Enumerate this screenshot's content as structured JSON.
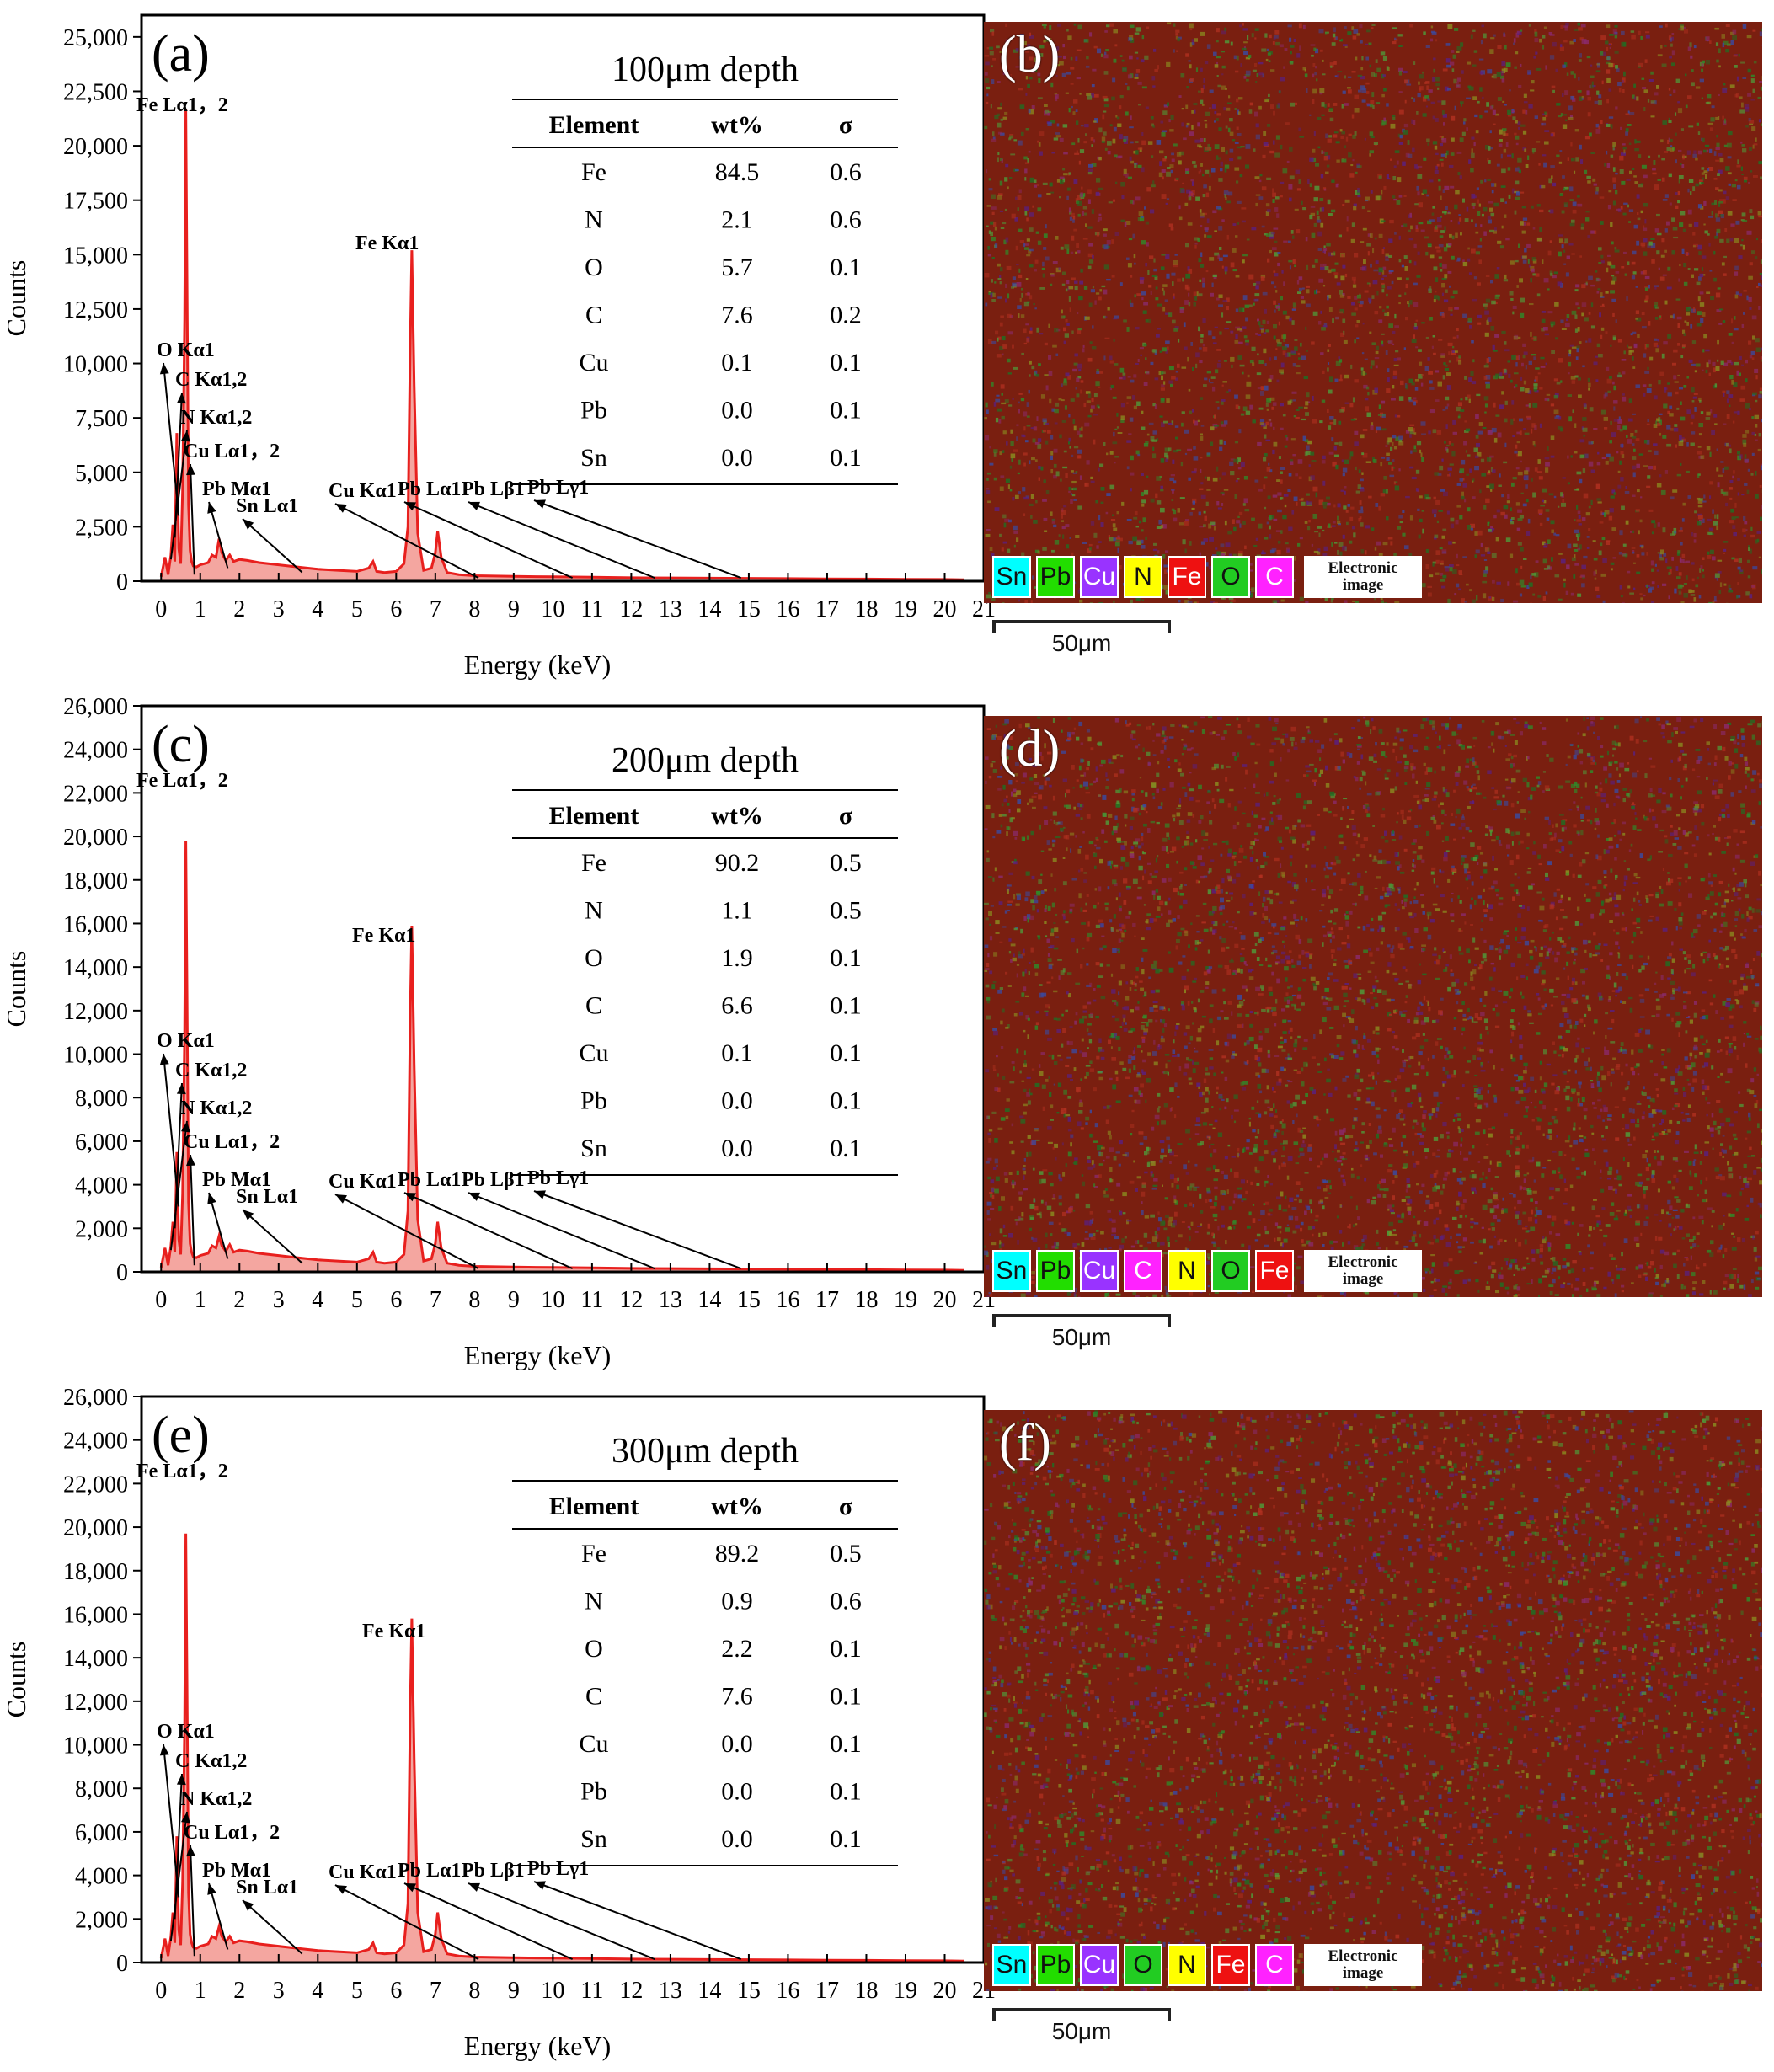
{
  "chart_data": [
    {
      "type": "area",
      "panel": "(a)",
      "depth_title": "100μm depth",
      "xlabel": "Energy (keV)",
      "ylabel": "Counts",
      "xlim": [
        -0.5,
        21
      ],
      "ylim": [
        0,
        26000
      ],
      "x_ticks": [
        0,
        1,
        2,
        3,
        4,
        5,
        6,
        7,
        8,
        9,
        10,
        11,
        12,
        13,
        14,
        15,
        16,
        17,
        18,
        19,
        20,
        21
      ],
      "y_ticks": [
        0,
        2500,
        5000,
        7500,
        10000,
        12500,
        15000,
        17500,
        20000,
        22500,
        25000
      ],
      "y_tick_labels": [
        "0",
        "2,500",
        "5,000",
        "7,500",
        "10,000",
        "12,500",
        "15,000",
        "17,500",
        "20,000",
        "22,500",
        "25,000"
      ],
      "series_color": "#e8201e",
      "fill_color": "#f4a6a0",
      "spectrum": {
        "x": [
          0,
          0.1,
          0.18,
          0.25,
          0.3,
          0.35,
          0.4,
          0.45,
          0.5,
          0.55,
          0.6,
          0.63,
          0.66,
          0.7,
          0.74,
          0.78,
          0.82,
          0.9,
          1.0,
          1.1,
          1.2,
          1.3,
          1.4,
          1.48,
          1.55,
          1.65,
          1.75,
          1.85,
          2.0,
          2.2,
          2.5,
          3.0,
          3.5,
          4.0,
          4.5,
          5.0,
          5.3,
          5.41,
          5.5,
          5.7,
          6.0,
          6.2,
          6.3,
          6.36,
          6.4,
          6.46,
          6.55,
          6.7,
          6.9,
          7.0,
          7.06,
          7.15,
          7.3,
          7.6,
          8.0,
          9.0,
          10.0,
          11.0,
          12.0,
          13.0,
          14.0,
          15.0,
          16.0,
          17.0,
          18.0,
          19.0,
          20.0,
          20.5
        ],
        "y": [
          200,
          1100,
          300,
          1200,
          2600,
          900,
          6800,
          1500,
          800,
          4200,
          12000,
          21700,
          14000,
          3500,
          1400,
          900,
          700,
          650,
          750,
          800,
          850,
          1200,
          1100,
          1950,
          1300,
          950,
          1200,
          900,
          1000,
          950,
          850,
          750,
          650,
          550,
          500,
          450,
          600,
          900,
          450,
          400,
          450,
          800,
          2500,
          11000,
          15200,
          9000,
          2200,
          500,
          600,
          1300,
          2300,
          1100,
          400,
          300,
          250,
          220,
          200,
          180,
          160,
          150,
          140,
          130,
          120,
          110,
          100,
          90,
          80,
          70
        ]
      },
      "annotations": [
        "Fe Lα1，2",
        "Fe Kα1",
        "O Kα1",
        "C Kα1,2",
        "N Kα1,2",
        "Cu Lα1，2",
        "Pb Mα1",
        "Sn Lα1",
        "Cu Kα1",
        "Pb Lα1",
        "Pb Lβ1",
        "Pb Lγ1"
      ],
      "table": {
        "headers": [
          "Element",
          "wt%",
          "σ"
        ],
        "rows": [
          [
            "Fe",
            "84.5",
            "0.6"
          ],
          [
            "N",
            "2.1",
            "0.6"
          ],
          [
            "O",
            "5.7",
            "0.1"
          ],
          [
            "C",
            "7.6",
            "0.2"
          ],
          [
            "Cu",
            "0.1",
            "0.1"
          ],
          [
            "Pb",
            "0.0",
            "0.1"
          ],
          [
            "Sn",
            "0.0",
            "0.1"
          ]
        ]
      }
    },
    {
      "type": "area",
      "panel": "(c)",
      "depth_title": "200μm depth",
      "xlabel": "Energy (keV)",
      "ylabel": "Counts",
      "xlim": [
        -0.5,
        21
      ],
      "ylim": [
        0,
        26000
      ],
      "x_ticks": [
        0,
        1,
        2,
        3,
        4,
        5,
        6,
        7,
        8,
        9,
        10,
        11,
        12,
        13,
        14,
        15,
        16,
        17,
        18,
        19,
        20,
        21
      ],
      "y_ticks": [
        0,
        2000,
        4000,
        6000,
        8000,
        10000,
        12000,
        14000,
        16000,
        18000,
        20000,
        22000,
        24000,
        26000
      ],
      "y_tick_labels": [
        "0",
        "2,000",
        "4,000",
        "6,000",
        "8,000",
        "10,000",
        "12,000",
        "14,000",
        "16,000",
        "18,000",
        "20,000",
        "22,000",
        "24,000",
        "26,000"
      ],
      "series_color": "#e8201e",
      "fill_color": "#f4a6a0",
      "spectrum": {
        "x": [
          0,
          0.1,
          0.18,
          0.25,
          0.3,
          0.35,
          0.4,
          0.45,
          0.5,
          0.55,
          0.6,
          0.63,
          0.66,
          0.7,
          0.74,
          0.78,
          0.82,
          0.9,
          1.0,
          1.1,
          1.2,
          1.3,
          1.4,
          1.48,
          1.55,
          1.65,
          1.75,
          1.85,
          2.0,
          2.2,
          2.5,
          3.0,
          3.5,
          4.0,
          4.5,
          5.0,
          5.3,
          5.41,
          5.5,
          5.7,
          6.0,
          6.2,
          6.3,
          6.36,
          6.4,
          6.46,
          6.55,
          6.7,
          6.9,
          7.0,
          7.06,
          7.15,
          7.3,
          7.6,
          8.0,
          9.0,
          10.0,
          11.0,
          12.0,
          13.0,
          14.0,
          15.0,
          16.0,
          17.0,
          18.0,
          19.0,
          20.0,
          20.5
        ],
        "y": [
          200,
          1100,
          300,
          1200,
          2300,
          900,
          5500,
          1500,
          800,
          3600,
          11000,
          19800,
          13000,
          3200,
          1300,
          900,
          700,
          650,
          750,
          800,
          850,
          1200,
          1100,
          1650,
          1200,
          950,
          1250,
          900,
          1000,
          950,
          850,
          750,
          650,
          550,
          500,
          450,
          600,
          900,
          450,
          400,
          450,
          800,
          2800,
          12000,
          15900,
          9500,
          2400,
          500,
          600,
          1300,
          2300,
          1100,
          400,
          300,
          250,
          220,
          200,
          180,
          160,
          150,
          140,
          130,
          120,
          110,
          100,
          90,
          80,
          70
        ]
      },
      "annotations": [
        "Fe Lα1，2",
        "Fe Kα1",
        "O Kα1",
        "C Kα1,2",
        "N Kα1,2",
        "Cu Lα1，2",
        "Pb Mα1",
        "Sn Lα1",
        "Cu Kα1",
        "Pb Lα1",
        "Pb Lβ1",
        "Pb Lγ1"
      ],
      "table": {
        "headers": [
          "Element",
          "wt%",
          "σ"
        ],
        "rows": [
          [
            "Fe",
            "90.2",
            "0.5"
          ],
          [
            "N",
            "1.1",
            "0.5"
          ],
          [
            "O",
            "1.9",
            "0.1"
          ],
          [
            "C",
            "6.6",
            "0.1"
          ],
          [
            "Cu",
            "0.1",
            "0.1"
          ],
          [
            "Pb",
            "0.0",
            "0.1"
          ],
          [
            "Sn",
            "0.0",
            "0.1"
          ]
        ]
      }
    },
    {
      "type": "area",
      "panel": "(e)",
      "depth_title": "300μm depth",
      "xlabel": "Energy (keV)",
      "ylabel": "Counts",
      "xlim": [
        -0.5,
        21
      ],
      "ylim": [
        0,
        26000
      ],
      "x_ticks": [
        0,
        1,
        2,
        3,
        4,
        5,
        6,
        7,
        8,
        9,
        10,
        11,
        12,
        13,
        14,
        15,
        16,
        17,
        18,
        19,
        20,
        21
      ],
      "y_ticks": [
        0,
        2000,
        4000,
        6000,
        8000,
        10000,
        12000,
        14000,
        16000,
        18000,
        20000,
        22000,
        24000,
        26000
      ],
      "y_tick_labels": [
        "0",
        "2,000",
        "4,000",
        "6,000",
        "8,000",
        "10,000",
        "12,000",
        "14,000",
        "16,000",
        "18,000",
        "20,000",
        "22,000",
        "24,000",
        "26,000"
      ],
      "series_color": "#e8201e",
      "fill_color": "#f4a6a0",
      "spectrum": {
        "x": [
          0,
          0.1,
          0.18,
          0.25,
          0.3,
          0.35,
          0.4,
          0.45,
          0.5,
          0.55,
          0.6,
          0.63,
          0.66,
          0.7,
          0.74,
          0.78,
          0.82,
          0.9,
          1.0,
          1.1,
          1.2,
          1.3,
          1.4,
          1.48,
          1.55,
          1.65,
          1.75,
          1.85,
          2.0,
          2.2,
          2.5,
          3.0,
          3.5,
          4.0,
          4.5,
          5.0,
          5.3,
          5.41,
          5.5,
          5.7,
          6.0,
          6.2,
          6.3,
          6.36,
          6.4,
          6.46,
          6.55,
          6.7,
          6.9,
          7.0,
          7.06,
          7.15,
          7.3,
          7.6,
          8.0,
          9.0,
          10.0,
          11.0,
          12.0,
          13.0,
          14.0,
          15.0,
          16.0,
          17.0,
          18.0,
          19.0,
          20.0,
          20.5
        ],
        "y": [
          200,
          1100,
          300,
          1200,
          2300,
          900,
          5800,
          1500,
          800,
          3700,
          11000,
          19700,
          13000,
          3200,
          1300,
          900,
          700,
          650,
          750,
          800,
          850,
          1200,
          1100,
          1650,
          1200,
          950,
          1200,
          900,
          1000,
          950,
          850,
          750,
          650,
          550,
          500,
          450,
          600,
          900,
          450,
          400,
          450,
          800,
          2700,
          11800,
          15800,
          9400,
          2300,
          500,
          600,
          1300,
          2300,
          1100,
          400,
          300,
          250,
          220,
          200,
          180,
          160,
          150,
          140,
          130,
          120,
          110,
          100,
          90,
          80,
          70
        ]
      },
      "annotations": [
        "Fe Lα1，2",
        "Fe Kα1",
        "O Kα1",
        "C Kα1,2",
        "N Kα1,2",
        "Cu Lα1，2",
        "Pb Mα1",
        "Sn Lα1",
        "Cu Kα1",
        "Pb Lα1",
        "Pb Lβ1",
        "Pb Lγ1"
      ],
      "table": {
        "headers": [
          "Element",
          "wt%",
          "σ"
        ],
        "rows": [
          [
            "Fe",
            "89.2",
            "0.5"
          ],
          [
            "N",
            "0.9",
            "0.6"
          ],
          [
            "O",
            "2.2",
            "0.1"
          ],
          [
            "C",
            "7.6",
            "0.1"
          ],
          [
            "Cu",
            "0.0",
            "0.1"
          ],
          [
            "Pb",
            "0.0",
            "0.1"
          ],
          [
            "Sn",
            "0.0",
            "0.1"
          ]
        ]
      }
    }
  ],
  "maps": [
    {
      "panel": "(b)",
      "legend": [
        {
          "el": "Sn",
          "bg": "#00ffff",
          "fg": "#111111"
        },
        {
          "el": "Pb",
          "bg": "#22dd00",
          "fg": "#111111"
        },
        {
          "el": "Cu",
          "bg": "#9933ff",
          "fg": "#ffffff"
        },
        {
          "el": "N",
          "bg": "#ffff00",
          "fg": "#111111"
        },
        {
          "el": "Fe",
          "bg": "#ee1111",
          "fg": "#ffffff"
        },
        {
          "el": "O",
          "bg": "#22cc22",
          "fg": "#111111"
        },
        {
          "el": "C",
          "bg": "#ff22ff",
          "fg": "#ffffff"
        }
      ],
      "electronic_label": [
        "Electronic",
        "image"
      ],
      "scale_label": "50μm"
    },
    {
      "panel": "(d)",
      "legend": [
        {
          "el": "Sn",
          "bg": "#00ffff",
          "fg": "#111111"
        },
        {
          "el": "Pb",
          "bg": "#22dd00",
          "fg": "#111111"
        },
        {
          "el": "Cu",
          "bg": "#9933ff",
          "fg": "#ffffff"
        },
        {
          "el": "C",
          "bg": "#ff22ff",
          "fg": "#ffffff"
        },
        {
          "el": "N",
          "bg": "#ffff00",
          "fg": "#111111"
        },
        {
          "el": "O",
          "bg": "#22cc22",
          "fg": "#111111"
        },
        {
          "el": "Fe",
          "bg": "#ee1111",
          "fg": "#ffffff"
        }
      ],
      "electronic_label": [
        "Electronic",
        "image"
      ],
      "scale_label": "50μm"
    },
    {
      "panel": "(f)",
      "legend": [
        {
          "el": "Sn",
          "bg": "#00ffff",
          "fg": "#111111"
        },
        {
          "el": "Pb",
          "bg": "#22dd00",
          "fg": "#111111"
        },
        {
          "el": "Cu",
          "bg": "#9933ff",
          "fg": "#ffffff"
        },
        {
          "el": "O",
          "bg": "#22cc22",
          "fg": "#111111"
        },
        {
          "el": "N",
          "bg": "#ffff00",
          "fg": "#111111"
        },
        {
          "el": "Fe",
          "bg": "#ee1111",
          "fg": "#ffffff"
        },
        {
          "el": "C",
          "bg": "#ff22ff",
          "fg": "#ffffff"
        }
      ],
      "electronic_label": [
        "Electronic",
        "image"
      ],
      "scale_label": "50μm"
    }
  ]
}
